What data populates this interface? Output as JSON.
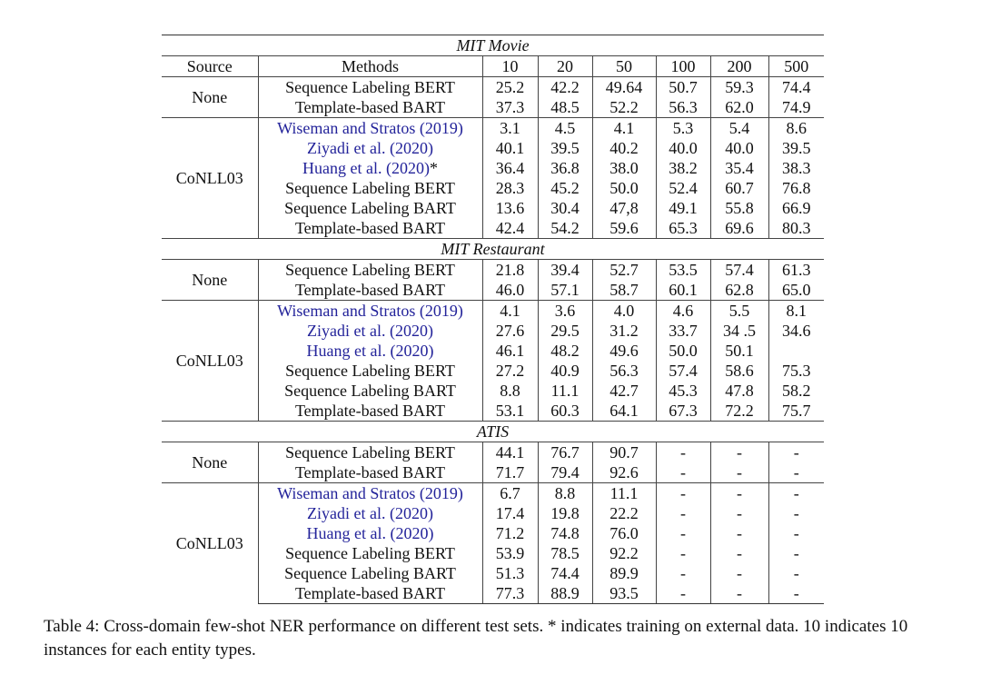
{
  "table": {
    "header": [
      "Source",
      "Methods",
      "10",
      "20",
      "50",
      "100",
      "200",
      "500"
    ],
    "sections": [
      {
        "title": "MIT Movie",
        "groups": [
          {
            "source": "None",
            "rows": [
              {
                "method": "Sequence Labeling BERT",
                "cells": [
                  "25.2",
                  "42.2",
                  "49.64",
                  "50.7",
                  "59.3",
                  "74.4"
                ]
              },
              {
                "method": "Template-based BART",
                "cells": [
                  "37.3",
                  "48.5",
                  "52.2",
                  "56.3",
                  "62.0",
                  "74.9"
                ]
              }
            ]
          },
          {
            "source": "CoNLL03",
            "rows": [
              {
                "method": "Wiseman and Stratos (2019)",
                "color": "#23239a",
                "cells": [
                  "3.1",
                  "4.5",
                  "4.1",
                  "5.3",
                  "5.4",
                  "8.6"
                ]
              },
              {
                "method": "Ziyadi et al. (2020)",
                "color": "#23239a",
                "cells": [
                  "40.1",
                  "39.5",
                  "40.2",
                  "40.0",
                  "40.0",
                  "39.5"
                ]
              },
              {
                "method": "Huang et al. (2020)",
                "mark": "*",
                "color": "#23239a",
                "cells": [
                  "36.4",
                  "36.8",
                  "38.0",
                  "38.2",
                  "35.4",
                  "38.3"
                ]
              },
              {
                "method": "Sequence Labeling BERT",
                "cells": [
                  "28.3",
                  "45.2",
                  "50.0",
                  "52.4",
                  "60.7",
                  "76.8"
                ]
              },
              {
                "method": "Sequence Labeling BART",
                "cells": [
                  "13.6",
                  "30.4",
                  "47,8",
                  "49.1",
                  "55.8",
                  "66.9"
                ]
              },
              {
                "method": "Template-based BART",
                "cells": [
                  "42.4",
                  "54.2",
                  "59.6",
                  "65.3",
                  "69.6",
                  "80.3"
                ]
              }
            ]
          }
        ]
      },
      {
        "title": "MIT Restaurant",
        "groups": [
          {
            "source": "None",
            "rows": [
              {
                "method": "Sequence Labeling BERT",
                "cells": [
                  "21.8",
                  "39.4",
                  "52.7",
                  "53.5",
                  "57.4",
                  "61.3"
                ]
              },
              {
                "method": "Template-based BART",
                "cells": [
                  "46.0",
                  "57.1",
                  "58.7",
                  "60.1",
                  "62.8",
                  "65.0"
                ]
              }
            ]
          },
          {
            "source": "CoNLL03",
            "rows": [
              {
                "method": "Wiseman and Stratos (2019)",
                "color": "#23239a",
                "cells": [
                  "4.1",
                  "3.6",
                  "4.0",
                  "4.6",
                  "5.5",
                  "8.1"
                ]
              },
              {
                "method": "Ziyadi et al. (2020)",
                "color": "#23239a",
                "cells": [
                  "27.6",
                  "29.5",
                  "31.2",
                  "33.7",
                  "34 .5",
                  "34.6"
                ]
              },
              {
                "method": "Huang et al. (2020)",
                "color": "#23239a",
                "cells": [
                  "46.1",
                  "48.2",
                  "49.6",
                  "50.0",
                  "50.1",
                  null
                ]
              },
              {
                "method": "Sequence Labeling BERT",
                "cells": [
                  "27.2",
                  "40.9",
                  "56.3",
                  "57.4",
                  "58.6",
                  "75.3"
                ]
              },
              {
                "method": "Sequence Labeling BART",
                "cells": [
                  "8.8",
                  "11.1",
                  "42.7",
                  "45.3",
                  "47.8",
                  "58.2"
                ]
              },
              {
                "method": "Template-based BART",
                "cells": [
                  "53.1",
                  "60.3",
                  "64.1",
                  "67.3",
                  "72.2",
                  "75.7"
                ]
              }
            ]
          }
        ]
      },
      {
        "title": "ATIS",
        "groups": [
          {
            "source": "None",
            "rows": [
              {
                "method": "Sequence Labeling BERT",
                "cells": [
                  "44.1",
                  "76.7",
                  "90.7",
                  "-",
                  "-",
                  "-"
                ]
              },
              {
                "method": "Template-based BART",
                "cells": [
                  "71.7",
                  "79.4",
                  "92.6",
                  "-",
                  "-",
                  "-"
                ]
              }
            ]
          },
          {
            "source": "CoNLL03",
            "rows": [
              {
                "method": "Wiseman and Stratos (2019)",
                "color": "#23239a",
                "cells": [
                  "6.7",
                  "8.8",
                  "11.1",
                  "-",
                  "-",
                  "-"
                ]
              },
              {
                "method": "Ziyadi et al. (2020)",
                "color": "#23239a",
                "cells": [
                  "17.4",
                  "19.8",
                  "22.2",
                  "-",
                  "-",
                  "-"
                ]
              },
              {
                "method": "Huang et al. (2020)",
                "color": "#23239a",
                "cells": [
                  "71.2",
                  "74.8",
                  "76.0",
                  "-",
                  "-",
                  "-"
                ]
              },
              {
                "method": "Sequence Labeling BERT",
                "cells": [
                  "53.9",
                  "78.5",
                  "92.2",
                  "-",
                  "-",
                  "-"
                ]
              },
              {
                "method": "Sequence Labeling BART",
                "cells": [
                  "51.3",
                  "74.4",
                  "89.9",
                  "-",
                  "-",
                  "-"
                ]
              },
              {
                "method": "Template-based BART",
                "cells": [
                  "77.3",
                  "88.9",
                  "93.5",
                  "-",
                  "-",
                  "-"
                ]
              }
            ]
          }
        ]
      }
    ]
  },
  "caption": "Table 4: Cross-domain few-shot NER performance on different test sets. * indicates training on external data. 10 indicates 10 instances for each entity types."
}
